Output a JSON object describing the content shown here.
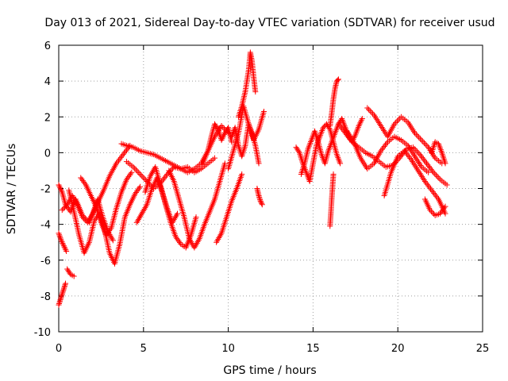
{
  "chart_data": {
    "type": "scatter",
    "title": "Day 013 of 2021, Sidereal Day-to-day VTEC variation (SDTVAR) for receiver usud",
    "xlabel": "GPS time / hours",
    "ylabel": "SDTVAR / TECUs",
    "xlim": [
      0,
      25
    ],
    "ylim": [
      -10,
      6
    ],
    "xticks": [
      0,
      5,
      10,
      15,
      20,
      25
    ],
    "yticks": [
      -10,
      -8,
      -6,
      -4,
      -2,
      0,
      2,
      4,
      6
    ],
    "xtick_labels": [
      "0",
      "5",
      "10",
      "15",
      "20",
      "25"
    ],
    "ytick_labels": [
      "-10",
      "-8",
      "-6",
      "-4",
      "-2",
      "0",
      "2",
      "4",
      "6"
    ],
    "grid": true,
    "marker": "+",
    "color": "#ff0000",
    "series": [
      {
        "name": "s1",
        "x": [
          0.0,
          0.2,
          0.4,
          0.7,
          1.0,
          1.4,
          1.8,
          2.2,
          2.6,
          3.0,
          3.4,
          3.8,
          4.2
        ],
        "y": [
          -1.8,
          -2.2,
          -2.9,
          -3.3,
          -2.6,
          -3.5,
          -3.9,
          -3.0,
          -2.2,
          -1.3,
          -0.6,
          -0.1,
          0.4
        ]
      },
      {
        "name": "s2",
        "x": [
          0.0,
          0.1,
          0.2,
          0.3,
          0.4
        ],
        "y": [
          -8.5,
          -8.2,
          -7.9,
          -7.6,
          -7.3
        ]
      },
      {
        "name": "s3",
        "x": [
          0.0,
          0.15,
          0.3,
          0.45
        ],
        "y": [
          -4.5,
          -4.9,
          -5.2,
          -5.5
        ]
      },
      {
        "name": "s4",
        "x": [
          0.5,
          0.7,
          0.9
        ],
        "y": [
          -6.5,
          -6.8,
          -6.9
        ]
      },
      {
        "name": "s5",
        "x": [
          0.6,
          0.9,
          1.2,
          1.5,
          1.8,
          2.1,
          2.4,
          2.7,
          3.0,
          3.3,
          3.6,
          3.9,
          4.2,
          4.5,
          4.8
        ],
        "y": [
          -2.1,
          -3.3,
          -4.6,
          -5.6,
          -5.0,
          -3.8,
          -3.4,
          -4.3,
          -5.6,
          -6.2,
          -5.1,
          -3.6,
          -2.9,
          -2.3,
          -1.9
        ]
      },
      {
        "name": "s6",
        "x": [
          0.2,
          0.5,
          0.8,
          1.1,
          1.4,
          1.7,
          2.0,
          2.3,
          2.6,
          2.9,
          3.2
        ],
        "y": [
          -3.2,
          -2.9,
          -2.4,
          -2.9,
          -3.6,
          -3.9,
          -3.4,
          -2.6,
          -3.6,
          -4.4,
          -4.9
        ]
      },
      {
        "name": "s7",
        "x": [
          1.3,
          1.6,
          1.9,
          2.2,
          2.5,
          2.8,
          3.1,
          3.4,
          3.7,
          4.0,
          4.3
        ],
        "y": [
          -1.4,
          -1.8,
          -2.4,
          -3.0,
          -3.9,
          -4.6,
          -4.2,
          -3.1,
          -2.2,
          -1.5,
          -1.1
        ]
      },
      {
        "name": "s8",
        "x": [
          3.7,
          4.0,
          4.4,
          4.8,
          5.2,
          5.6,
          6.0,
          6.4,
          6.8,
          7.2,
          7.6,
          8.0,
          8.4,
          8.8,
          9.2
        ],
        "y": [
          0.5,
          0.4,
          0.3,
          0.1,
          0.0,
          -0.1,
          -0.3,
          -0.5,
          -0.7,
          -0.9,
          -0.8,
          -1.1,
          -0.9,
          -0.6,
          -0.3
        ]
      },
      {
        "name": "s9",
        "x": [
          4.0,
          4.4,
          4.8,
          5.2,
          5.6,
          6.0,
          6.4,
          6.8,
          7.2,
          7.6,
          8.0,
          8.4,
          8.8,
          9.2,
          9.6,
          10.0
        ],
        "y": [
          -0.5,
          -0.8,
          -1.2,
          -1.6,
          -2.0,
          -1.7,
          -1.2,
          -0.8,
          -0.9,
          -1.1,
          -0.9,
          -0.6,
          0.1,
          0.9,
          1.5,
          1.1
        ]
      },
      {
        "name": "s10",
        "x": [
          4.6,
          4.9,
          5.2,
          5.5,
          5.8,
          6.1,
          6.4,
          6.7,
          7.0
        ],
        "y": [
          -3.9,
          -3.4,
          -2.9,
          -2.0,
          -1.4,
          -2.2,
          -3.1,
          -3.9,
          -3.4
        ]
      },
      {
        "name": "s11",
        "x": [
          5.1,
          5.4,
          5.7,
          6.0,
          6.3,
          6.6,
          6.9,
          7.2,
          7.5,
          7.8,
          8.1
        ],
        "y": [
          -2.2,
          -1.3,
          -0.8,
          -1.8,
          -2.9,
          -3.9,
          -4.7,
          -5.1,
          -5.3,
          -4.6,
          -3.6
        ]
      },
      {
        "name": "s12",
        "x": [
          6.5,
          6.8,
          7.1,
          7.4,
          7.7,
          8.0,
          8.3,
          8.6,
          8.9,
          9.2,
          9.5,
          9.8
        ],
        "y": [
          -1.0,
          -1.6,
          -2.6,
          -3.6,
          -4.8,
          -5.3,
          -4.8,
          -4.0,
          -3.3,
          -2.6,
          -1.6,
          -0.6
        ]
      },
      {
        "name": "s13",
        "x": [
          8.5,
          8.8,
          9.0,
          9.2,
          9.4,
          9.6,
          9.8,
          10.0,
          10.2
        ],
        "y": [
          -0.6,
          0.1,
          0.9,
          1.6,
          1.3,
          0.7,
          1.1,
          1.4,
          0.6
        ]
      },
      {
        "name": "s14",
        "x": [
          9.3,
          9.6,
          9.9,
          10.2,
          10.5,
          10.8
        ],
        "y": [
          -5.0,
          -4.5,
          -3.6,
          -2.7,
          -2.0,
          -1.2
        ]
      },
      {
        "name": "s15",
        "x": [
          10.0,
          10.3,
          10.6,
          10.9,
          11.2,
          11.5,
          11.8,
          12.1
        ],
        "y": [
          -0.9,
          0.1,
          1.1,
          2.6,
          1.6,
          0.7,
          1.3,
          2.3
        ]
      },
      {
        "name": "s16",
        "x": [
          10.6,
          10.8,
          11.0,
          11.2,
          11.3,
          11.4,
          11.5,
          11.6
        ],
        "y": [
          2.0,
          2.6,
          3.4,
          4.6,
          5.6,
          5.1,
          4.2,
          3.4
        ]
      },
      {
        "name": "s17",
        "x": [
          10.2,
          10.4,
          10.6,
          10.8,
          11.0,
          11.2,
          11.4,
          11.6,
          11.8
        ],
        "y": [
          0.9,
          1.4,
          0.4,
          -0.2,
          0.4,
          1.6,
          1.1,
          0.4,
          -0.6
        ]
      },
      {
        "name": "s18",
        "x": [
          11.7,
          11.8,
          11.9,
          12.0
        ],
        "y": [
          -2.0,
          -2.4,
          -2.7,
          -2.9
        ]
      },
      {
        "name": "s19",
        "x": [
          14.0,
          14.2,
          14.4,
          14.6,
          14.8,
          15.0,
          15.2,
          15.4,
          15.6,
          15.8,
          16.0,
          16.2,
          16.4,
          16.6
        ],
        "y": [
          0.3,
          0.0,
          -0.6,
          -1.1,
          -1.6,
          -0.6,
          0.4,
          0.9,
          1.4,
          1.6,
          1.3,
          0.6,
          -0.1,
          -0.6
        ]
      },
      {
        "name": "s20",
        "x": [
          14.3,
          14.5,
          14.7,
          14.9,
          15.1,
          15.3,
          15.5,
          15.7,
          15.9,
          16.1,
          16.3,
          16.5,
          16.7,
          16.9,
          17.1,
          17.3,
          17.5,
          17.7,
          17.9
        ],
        "y": [
          -1.2,
          -0.6,
          0.2,
          0.7,
          1.2,
          0.6,
          -0.1,
          -0.6,
          0.1,
          0.6,
          1.1,
          1.6,
          1.9,
          1.4,
          0.9,
          0.6,
          1.0,
          1.5,
          1.9
        ]
      },
      {
        "name": "s21",
        "x": [
          16.0,
          16.1,
          16.2,
          16.3,
          16.4,
          16.5
        ],
        "y": [
          1.5,
          2.2,
          3.0,
          3.6,
          4.0,
          4.1
        ]
      },
      {
        "name": "s22",
        "x": [
          16.0,
          16.05,
          16.1,
          16.15,
          16.2
        ],
        "y": [
          -4.1,
          -3.4,
          -2.6,
          -1.9,
          -1.2
        ]
      },
      {
        "name": "s23",
        "x": [
          16.5,
          16.9,
          17.3,
          17.7,
          18.1,
          18.5,
          18.9,
          19.3,
          19.7,
          20.1,
          20.5,
          20.9,
          21.3,
          21.7,
          22.1,
          22.5,
          22.9
        ],
        "y": [
          1.6,
          1.1,
          0.6,
          0.3,
          0.0,
          -0.2,
          -0.5,
          -0.8,
          -0.7,
          -0.3,
          0.2,
          0.3,
          -0.1,
          -0.6,
          -1.1,
          -1.5,
          -1.8
        ]
      },
      {
        "name": "s24",
        "x": [
          17.0,
          17.4,
          17.8,
          18.2,
          18.6,
          19.0,
          19.4,
          19.8,
          20.2,
          20.6,
          21.0,
          21.4,
          21.8
        ],
        "y": [
          1.2,
          0.6,
          -0.3,
          -0.9,
          -0.6,
          0.1,
          0.6,
          0.9,
          0.7,
          0.4,
          -0.2,
          -0.8,
          -1.1
        ]
      },
      {
        "name": "s25",
        "x": [
          18.2,
          18.6,
          19.0,
          19.4,
          19.8,
          20.2,
          20.6,
          21.0,
          21.4,
          21.8,
          22.2,
          22.6
        ],
        "y": [
          2.5,
          2.1,
          1.5,
          0.9,
          1.6,
          2.0,
          1.7,
          1.1,
          0.7,
          0.3,
          -0.3,
          -0.6
        ]
      },
      {
        "name": "s26",
        "x": [
          19.2,
          19.6,
          20.0,
          20.4,
          20.8,
          21.2,
          21.6,
          22.0,
          22.4,
          22.8
        ],
        "y": [
          -2.4,
          -1.1,
          -0.2,
          0.1,
          -0.4,
          -1.0,
          -1.6,
          -2.1,
          -2.6,
          -3.4
        ]
      },
      {
        "name": "s27",
        "x": [
          21.6,
          21.9,
          22.2,
          22.5,
          22.8
        ],
        "y": [
          -2.6,
          -3.2,
          -3.5,
          -3.4,
          -3.0
        ]
      },
      {
        "name": "s28",
        "x": [
          22.0,
          22.2,
          22.4,
          22.6,
          22.8
        ],
        "y": [
          0.0,
          0.6,
          0.5,
          0.0,
          -0.6
        ]
      }
    ]
  }
}
